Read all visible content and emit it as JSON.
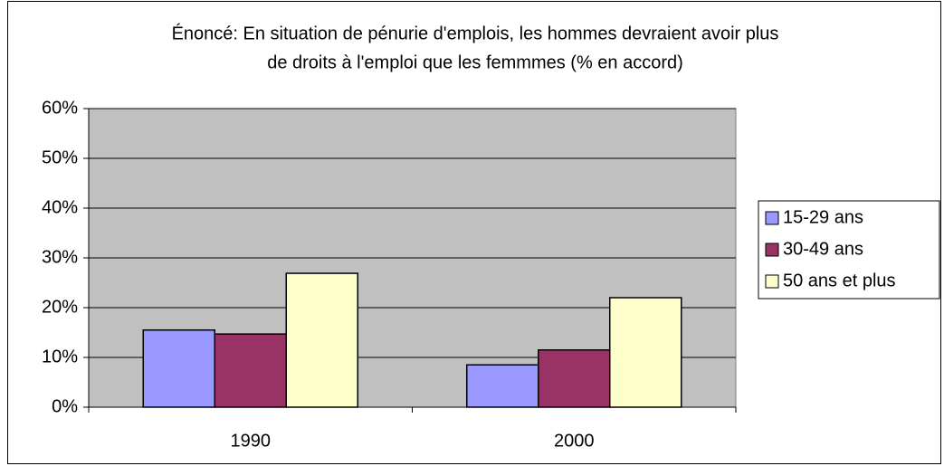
{
  "chart_data": {
    "type": "bar",
    "title": [
      "Énoncé: En situation de pénurie d'emplois, les hommes devraient avoir plus",
      "de droits à l'emploi que les femmmes (% en accord)"
    ],
    "categories": [
      "1990",
      "2000"
    ],
    "series": [
      {
        "name": "15-29 ans",
        "color": "#9999ff",
        "values": [
          15.5,
          8.5
        ]
      },
      {
        "name": "30-49 ans",
        "color": "#993366",
        "values": [
          14.7,
          11.5
        ]
      },
      {
        "name": "50 ans et plus",
        "color": "#ffffcc",
        "values": [
          26.9,
          22.0
        ]
      }
    ],
    "ylim": [
      0,
      60
    ],
    "yticks": [
      {
        "value": 0,
        "label": "0%"
      },
      {
        "value": 10,
        "label": "10%"
      },
      {
        "value": 20,
        "label": "20%"
      },
      {
        "value": 30,
        "label": "30%"
      },
      {
        "value": 40,
        "label": "40%"
      },
      {
        "value": 50,
        "label": "50%"
      },
      {
        "value": 60,
        "label": "60%"
      }
    ],
    "grid": true,
    "legend": "right"
  }
}
